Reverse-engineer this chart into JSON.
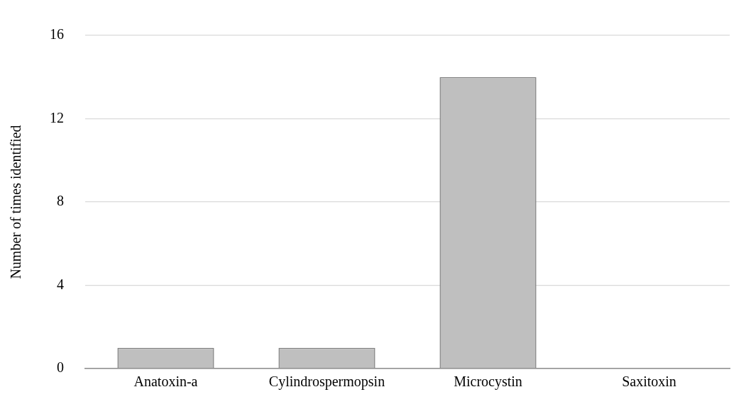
{
  "chart_data": {
    "type": "bar",
    "ylabel": "Number of times identified",
    "categories": [
      "Anatoxin-a",
      "Cylindrospermopsin",
      "Microcystin",
      "Saxitoxin"
    ],
    "values": [
      1,
      1,
      14,
      0
    ],
    "color": "#bfbfbf",
    "ylim": [
      0,
      16
    ],
    "yticks": [
      0,
      4,
      8,
      12,
      16
    ],
    "grid": "y"
  }
}
